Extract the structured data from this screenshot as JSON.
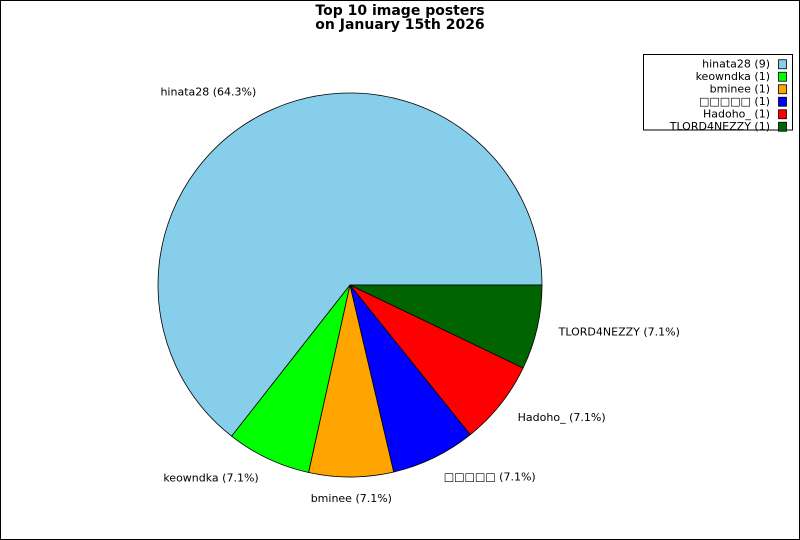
{
  "chart_data": {
    "type": "pie",
    "title": [
      "Top 10 image posters",
      "on January 15th 2026"
    ],
    "categories": [
      "hinata28",
      "keowndka",
      "bminee",
      "□□□□□",
      "Hadoho_",
      "TLORD4NEZZY"
    ],
    "values": [
      64.3,
      7.1,
      7.1,
      7.1,
      7.1,
      7.1
    ],
    "value_labels": [
      "hinata28 (64.3%)",
      "keowndka (7.1%)",
      "bminee (7.1%)",
      "□□□□□ (7.1%)",
      "Hadoho_ (7.1%)",
      "TLORD4NEZZY (7.1%)"
    ],
    "colors": [
      "#87ceeb",
      "#00ff00",
      "#ffa500",
      "#0000ff",
      "#ff0000",
      "#006400"
    ],
    "legend": [
      "hinata28 (9)",
      "keowndka (1)",
      "bminee (1)",
      "□□□□□ (1)",
      "Hadoho_ (1)",
      "TLORD4NEZZY (1)"
    ],
    "legend_position": "upper right"
  }
}
